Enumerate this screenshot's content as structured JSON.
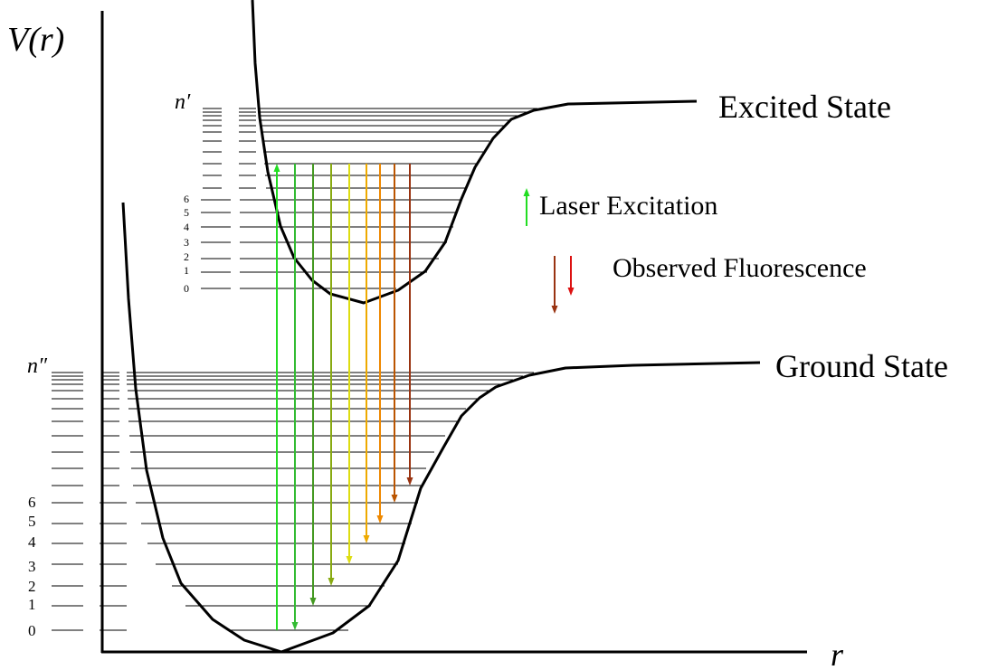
{
  "axes": {
    "y_label": "V(r)",
    "x_label": "r"
  },
  "excited_state": {
    "name": "Excited State",
    "quantum_symbol": "n′",
    "level_labels": [
      "0",
      "1",
      "2",
      "3",
      "4",
      "5",
      "6"
    ]
  },
  "ground_state": {
    "name": "Ground State",
    "quantum_symbol": "n″",
    "level_labels": [
      "0",
      "1",
      "2",
      "3",
      "4",
      "5",
      "6"
    ]
  },
  "legend": {
    "excitation_label": "Laser Excitation",
    "fluorescence_label": "Observed Fluorescence"
  },
  "colors": {
    "curve": "#000000",
    "excitation": "#22dd22",
    "fluorescence": [
      "#33bb33",
      "#449922",
      "#88aa11",
      "#dddd11",
      "#eeaa00",
      "#ee8800",
      "#bb5500",
      "#993311",
      "#dd1111"
    ],
    "legend_fluorescence": [
      "#993311",
      "#dd1111"
    ]
  }
}
